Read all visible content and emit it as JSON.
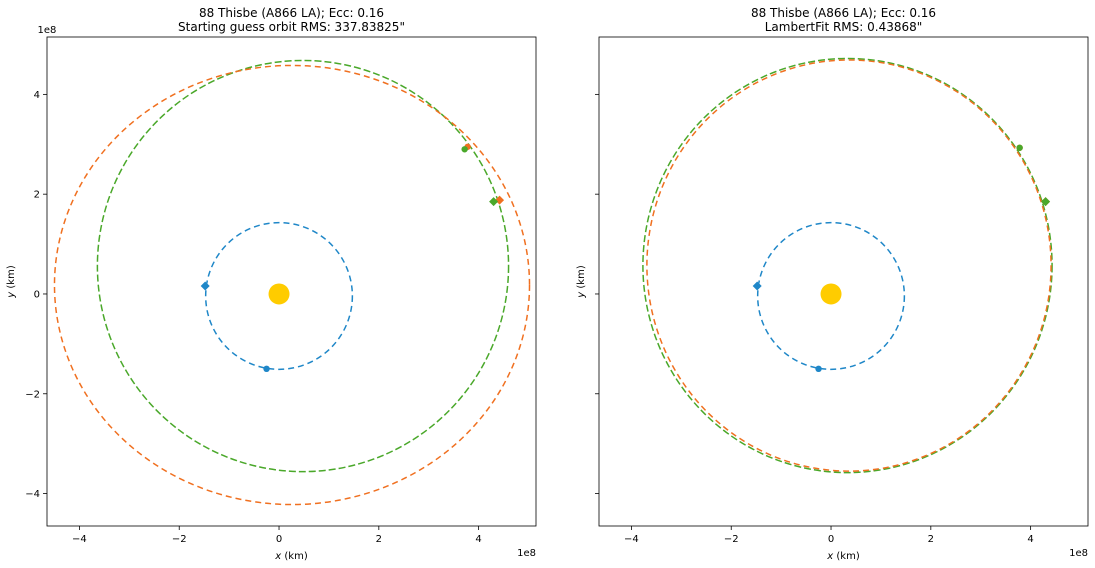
{
  "chart_data": [
    {
      "type": "line",
      "title_line1": "88 Thisbe (A866 LA); Ecc: 0.16",
      "title_line2": "Starting guess orbit RMS: 337.83825\"",
      "xlabel_var": "x",
      "xlabel_unit": " (km)",
      "ylabel_var": "y",
      "ylabel_unit": " (km)",
      "x_offset_label": "1e8",
      "y_offset_label": "1e8",
      "xlim": [
        -4.65,
        5.15
      ],
      "ylim": [
        -4.65,
        5.15
      ],
      "xticks": [
        -4,
        -2,
        0,
        2,
        4
      ],
      "yticks": [
        -4,
        -2,
        0,
        2,
        4
      ],
      "xtick_labels": [
        "−4",
        "−2",
        "0",
        "2",
        "4"
      ],
      "ytick_labels": [
        "−4",
        "−2",
        "0",
        "2",
        "4"
      ],
      "show_y_tick_labels": true,
      "sun": {
        "x": 0,
        "y": 0,
        "color": "#ffcc00"
      },
      "orbits": [
        {
          "role": "earth",
          "color": "#1f87c8",
          "center": [
            0,
            -0.04
          ],
          "a": 1.47,
          "b": 1.47,
          "dash": "6,4"
        },
        {
          "role": "fit",
          "color": "#4aa82a",
          "center": [
            0.48,
            0.56
          ],
          "a": 4.12,
          "b": 4.12,
          "dash": "7,3"
        },
        {
          "role": "guess",
          "color": "#f07020",
          "center": [
            0.26,
            0.18
          ],
          "a": 4.76,
          "b": 4.4,
          "dash": "6,4"
        }
      ],
      "markers": [
        {
          "color": "#1f87c8",
          "shape": "diamond",
          "x": -1.48,
          "y": 0.16
        },
        {
          "color": "#1f87c8",
          "shape": "dot",
          "x": -0.25,
          "y": -1.5
        },
        {
          "color": "#f07020",
          "shape": "dot",
          "x": 3.78,
          "y": 2.95
        },
        {
          "color": "#f07020",
          "shape": "diamond",
          "x": 4.42,
          "y": 1.88
        },
        {
          "color": "#4aa82a",
          "shape": "diamond",
          "x": 4.3,
          "y": 1.85
        },
        {
          "color": "#4aa82a",
          "shape": "dot",
          "x": 3.72,
          "y": 2.9
        }
      ]
    },
    {
      "type": "line",
      "title_line1": "88 Thisbe (A866 LA); Ecc: 0.16",
      "title_line2": "LambertFit RMS: 0.43868\"",
      "xlabel_var": "x",
      "xlabel_unit": " (km)",
      "ylabel_var": "y",
      "ylabel_unit": " (km)",
      "x_offset_label": "1e8",
      "y_offset_label": "",
      "xlim": [
        -4.65,
        5.15
      ],
      "ylim": [
        -4.65,
        5.15
      ],
      "xticks": [
        -4,
        -2,
        0,
        2,
        4
      ],
      "yticks": [
        -4,
        -2,
        0,
        2,
        4
      ],
      "xtick_labels": [
        "−4",
        "−2",
        "0",
        "2",
        "4"
      ],
      "ytick_labels": [],
      "show_y_tick_labels": false,
      "sun": {
        "x": 0,
        "y": 0,
        "color": "#ffcc00"
      },
      "orbits": [
        {
          "role": "earth",
          "color": "#1f87c8",
          "center": [
            0,
            -0.04
          ],
          "a": 1.47,
          "b": 1.47,
          "dash": "6,4"
        },
        {
          "role": "fit",
          "color": "#4aa82a",
          "center": [
            0.33,
            0.57
          ],
          "a": 4.1,
          "b": 4.15,
          "dash": "7,3"
        },
        {
          "role": "guess",
          "color": "#f07020",
          "center": [
            0.36,
            0.57
          ],
          "a": 4.05,
          "b": 4.12,
          "dash": "6,4"
        }
      ],
      "markers": [
        {
          "color": "#1f87c8",
          "shape": "diamond",
          "x": -1.48,
          "y": 0.16
        },
        {
          "color": "#1f87c8",
          "shape": "dot",
          "x": -0.25,
          "y": -1.5
        },
        {
          "color": "#f07020",
          "shape": "dot",
          "x": 3.78,
          "y": 2.93
        },
        {
          "color": "#f07020",
          "shape": "diamond",
          "x": 4.3,
          "y": 1.85
        },
        {
          "color": "#4aa82a",
          "shape": "diamond",
          "x": 4.3,
          "y": 1.85
        },
        {
          "color": "#4aa82a",
          "shape": "dot",
          "x": 3.78,
          "y": 2.93
        }
      ]
    }
  ]
}
